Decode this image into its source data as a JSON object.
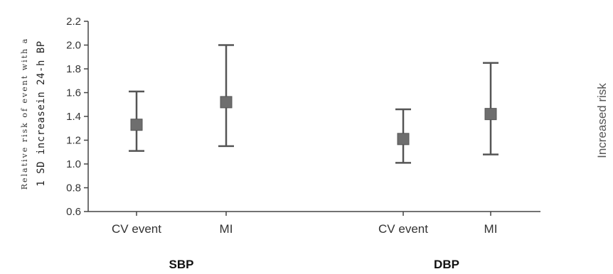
{
  "chart_data": {
    "type": "error-bar",
    "y_axis": {
      "label_line1": "Relative risk of event with a",
      "label_line2": "1 SD increasein 24-h BP",
      "ylim": [
        0.6,
        2.2
      ],
      "ticks": [
        "0.6",
        "0.8",
        "1.0",
        "1.2",
        "1.4",
        "1.6",
        "1.8",
        "2.0",
        "2.2"
      ]
    },
    "side_label": "Increased risk",
    "color": "#555555",
    "groups": [
      {
        "name": "SBP",
        "points": [
          {
            "category": "CV event",
            "estimate": 1.33,
            "lower": 1.11,
            "upper": 1.61
          },
          {
            "category": "MI",
            "estimate": 1.52,
            "lower": 1.15,
            "upper": 2.0
          }
        ]
      },
      {
        "name": "DBP",
        "points": [
          {
            "category": "CV event",
            "estimate": 1.21,
            "lower": 1.01,
            "upper": 1.46
          },
          {
            "category": "MI",
            "estimate": 1.42,
            "lower": 1.08,
            "upper": 1.85
          }
        ]
      }
    ]
  }
}
